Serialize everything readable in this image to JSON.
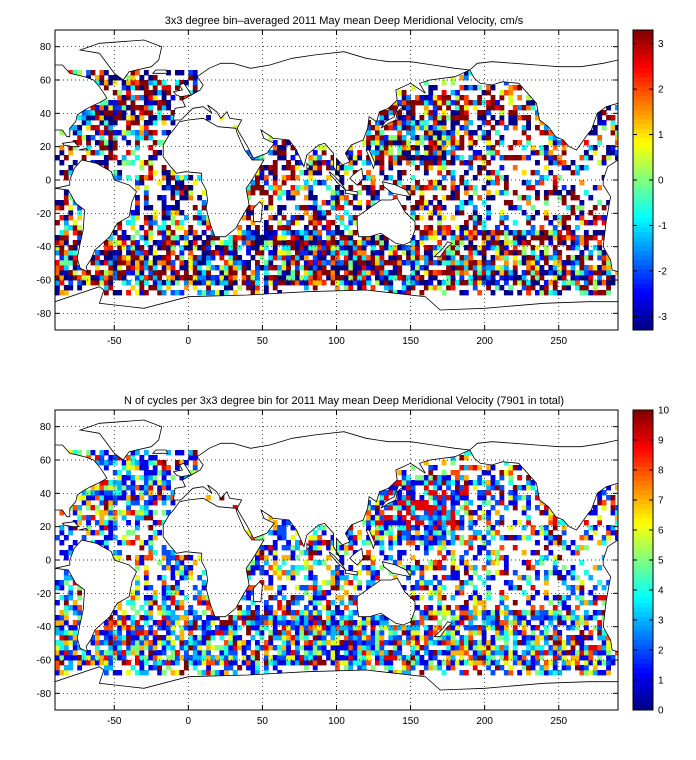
{
  "panels": [
    {
      "title": "3x3 degree bin–averaged 2011 May mean Deep Meridional Velocity, cm/s",
      "colorbar": {
        "min": -3.3,
        "max": 3.3,
        "ticks": [
          "3",
          "2",
          "1",
          "0",
          "-1",
          "-2",
          "-3"
        ]
      },
      "field": "velocity"
    },
    {
      "title": "N of cycles per 3x3 degree bin for 2011 May mean Deep Meridional Velocity (7901 in total)",
      "colorbar": {
        "min": 0,
        "max": 10,
        "ticks": [
          "10",
          "9",
          "8",
          "7",
          "6",
          "5",
          "4",
          "3",
          "2",
          "1",
          "0"
        ]
      },
      "field": "count"
    }
  ],
  "axes": {
    "xlim": [
      -90,
      290
    ],
    "ylim": [
      -90,
      90
    ],
    "xticks": [
      "-50",
      "0",
      "50",
      "100",
      "150",
      "200",
      "250"
    ],
    "yticks": [
      "80",
      "60",
      "40",
      "20",
      "0",
      "-20",
      "-40",
      "-60",
      "-80"
    ],
    "grid": "dotted"
  },
  "colormap": "jet"
}
